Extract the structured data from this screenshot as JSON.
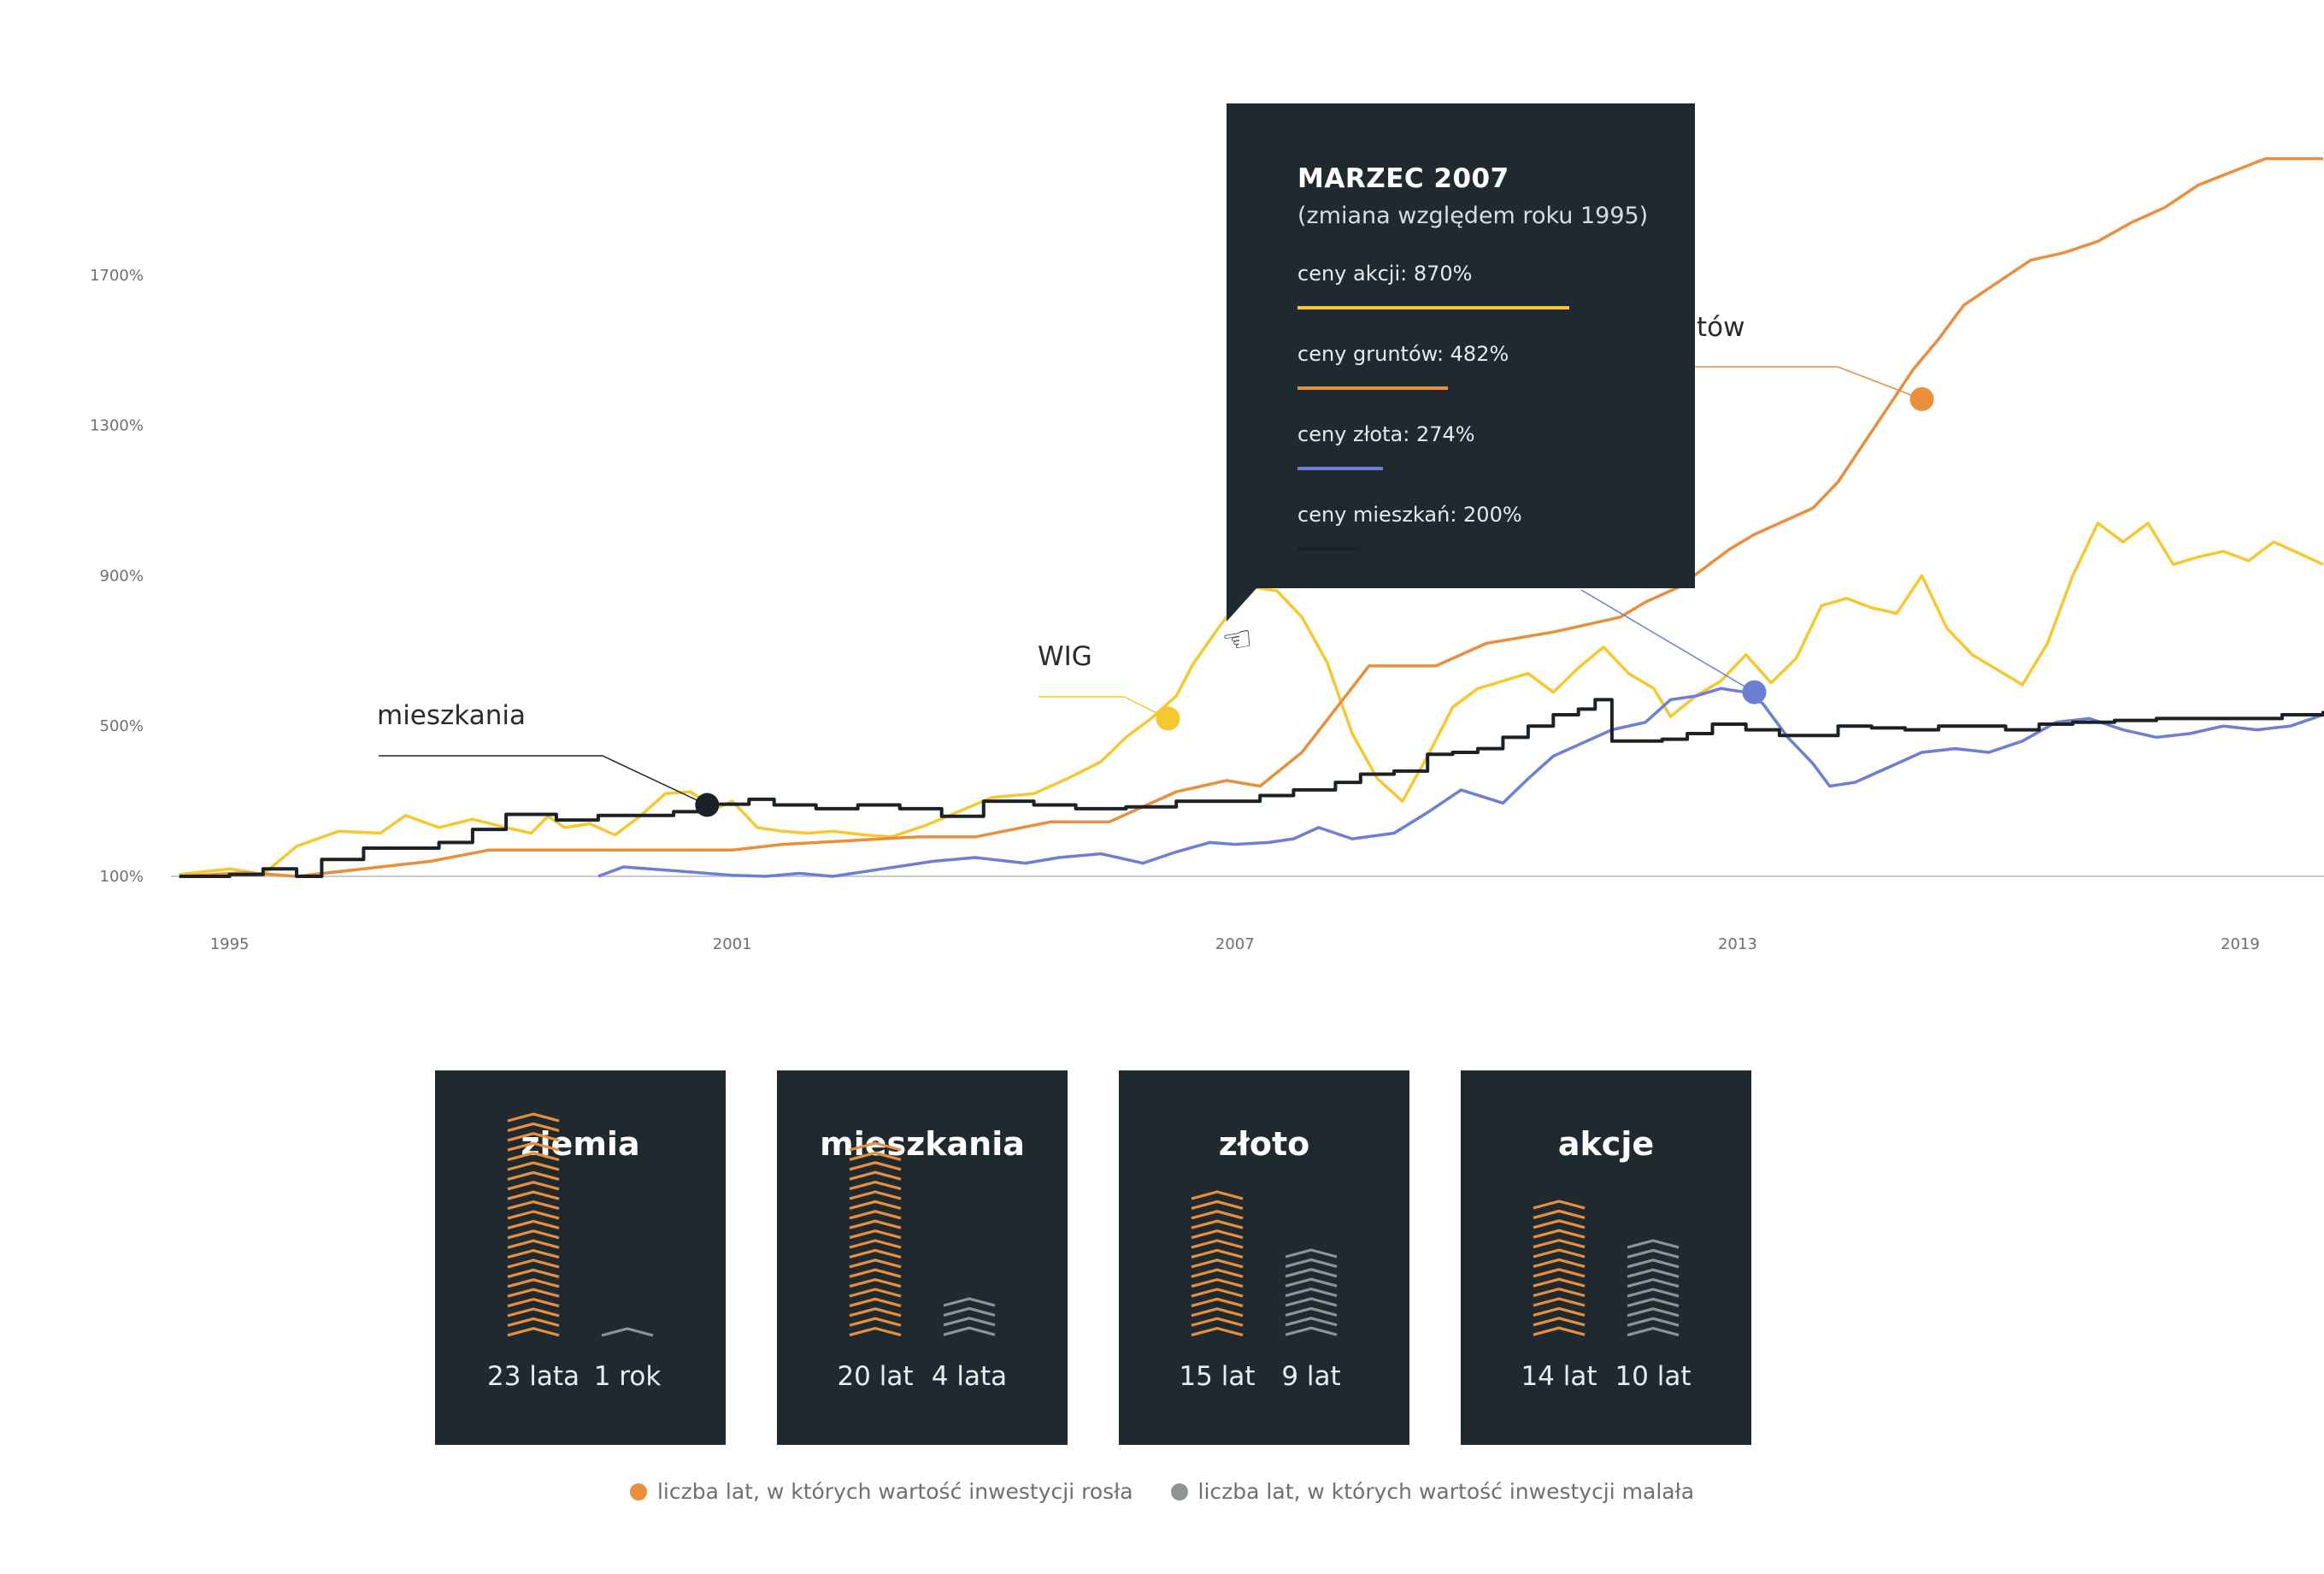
{
  "colors": {
    "akcje": "#f5c831",
    "grunty": "#e98f3c",
    "zloto": "#6c7fd4",
    "mieszkania": "#1b2227",
    "panel": "#1f2a30",
    "rise": "#e98f3c",
    "fall": "#8e9396"
  },
  "chart_data": {
    "type": "line",
    "x_range": [
      1994.3,
      2020.0
    ],
    "y_range": [
      100,
      2000
    ],
    "x_ticks": [
      "1995",
      "2001",
      "2007",
      "2013",
      "2019"
    ],
    "y_ticks": [
      "1700%",
      "1300%",
      "900%",
      "500%",
      "100%"
    ],
    "grid": false,
    "series": [
      {
        "key": "akcje",
        "name": "WIG",
        "dot": [
          2006.2,
          520
        ],
        "points": [
          [
            1994.4,
            105
          ],
          [
            1995.0,
            120
          ],
          [
            1995.4,
            105
          ],
          [
            1995.8,
            180
          ],
          [
            1996.3,
            220
          ],
          [
            1996.8,
            215
          ],
          [
            1997.1,
            262
          ],
          [
            1997.5,
            230
          ],
          [
            1997.9,
            252
          ],
          [
            1998.3,
            230
          ],
          [
            1998.6,
            215
          ],
          [
            1998.8,
            260
          ],
          [
            1999.0,
            230
          ],
          [
            1999.3,
            240
          ],
          [
            1999.6,
            210
          ],
          [
            1999.9,
            260
          ],
          [
            2000.2,
            320
          ],
          [
            2000.5,
            325
          ],
          [
            2000.8,
            280
          ],
          [
            2001.0,
            300
          ],
          [
            2001.3,
            230
          ],
          [
            2001.6,
            220
          ],
          [
            2001.9,
            215
          ],
          [
            2002.2,
            220
          ],
          [
            2002.6,
            210
          ],
          [
            2002.9,
            205
          ],
          [
            2003.3,
            235
          ],
          [
            2003.7,
            272
          ],
          [
            2004.1,
            310
          ],
          [
            2004.6,
            320
          ],
          [
            2005.0,
            360
          ],
          [
            2005.4,
            405
          ],
          [
            2005.7,
            470
          ],
          [
            2006.0,
            520
          ],
          [
            2006.3,
            580
          ],
          [
            2006.5,
            665
          ],
          [
            2006.8,
            760
          ],
          [
            2007.0,
            820
          ],
          [
            2007.2,
            870
          ],
          [
            2007.5,
            860
          ],
          [
            2007.8,
            790
          ],
          [
            2008.1,
            670
          ],
          [
            2008.4,
            480
          ],
          [
            2008.7,
            360
          ],
          [
            2009.0,
            300
          ],
          [
            2009.3,
            420
          ],
          [
            2009.6,
            550
          ],
          [
            2009.9,
            600
          ],
          [
            2010.2,
            620
          ],
          [
            2010.5,
            640
          ],
          [
            2010.8,
            590
          ],
          [
            2011.1,
            655
          ],
          [
            2011.4,
            710
          ],
          [
            2011.7,
            640
          ],
          [
            2012.0,
            600
          ],
          [
            2012.2,
            525
          ],
          [
            2012.5,
            580
          ],
          [
            2012.8,
            620
          ],
          [
            2013.1,
            690
          ],
          [
            2013.4,
            615
          ],
          [
            2013.7,
            680
          ],
          [
            2014.0,
            820
          ],
          [
            2014.3,
            840
          ],
          [
            2014.6,
            815
          ],
          [
            2014.9,
            800
          ],
          [
            2015.2,
            900
          ],
          [
            2015.5,
            760
          ],
          [
            2015.8,
            690
          ],
          [
            2016.1,
            650
          ],
          [
            2016.4,
            610
          ],
          [
            2016.7,
            720
          ],
          [
            2017.0,
            900
          ],
          [
            2017.3,
            1040
          ],
          [
            2017.6,
            990
          ],
          [
            2017.9,
            1040
          ],
          [
            2018.2,
            930
          ],
          [
            2018.5,
            950
          ],
          [
            2018.8,
            965
          ],
          [
            2019.1,
            940
          ],
          [
            2019.4,
            990
          ],
          [
            2019.7,
            960
          ],
          [
            2019.99,
            930
          ]
        ]
      },
      {
        "key": "grunty",
        "name": "",
        "dot": [
          2015.2,
          1370
        ],
        "points": [
          [
            1994.4,
            100
          ],
          [
            1995.2,
            110
          ],
          [
            1995.8,
            100
          ],
          [
            1996.6,
            120
          ],
          [
            1997.4,
            140
          ],
          [
            1998.1,
            170
          ],
          [
            2001.0,
            170
          ],
          [
            2001.6,
            185
          ],
          [
            2002.4,
            195
          ],
          [
            2003.2,
            205
          ],
          [
            2003.9,
            205
          ],
          [
            2004.8,
            245
          ],
          [
            2005.5,
            245
          ],
          [
            2006.3,
            325
          ],
          [
            2006.9,
            355
          ],
          [
            2007.3,
            340
          ],
          [
            2007.8,
            430
          ],
          [
            2008.6,
            660
          ],
          [
            2009.4,
            660
          ],
          [
            2010.0,
            720
          ],
          [
            2010.8,
            750
          ],
          [
            2011.2,
            770
          ],
          [
            2011.6,
            790
          ],
          [
            2011.9,
            830
          ],
          [
            2012.3,
            870
          ],
          [
            2012.6,
            920
          ],
          [
            2012.9,
            970
          ],
          [
            2013.2,
            1010
          ],
          [
            2013.6,
            1050
          ],
          [
            2013.9,
            1080
          ],
          [
            2014.2,
            1150
          ],
          [
            2014.5,
            1250
          ],
          [
            2014.8,
            1350
          ],
          [
            2015.1,
            1450
          ],
          [
            2015.4,
            1530
          ],
          [
            2015.7,
            1620
          ],
          [
            2016.1,
            1680
          ],
          [
            2016.5,
            1740
          ],
          [
            2016.9,
            1760
          ],
          [
            2017.3,
            1790
          ],
          [
            2017.7,
            1840
          ],
          [
            2018.1,
            1880
          ],
          [
            2018.5,
            1940
          ],
          [
            2018.9,
            1975
          ],
          [
            2019.3,
            2010
          ],
          [
            2019.99,
            2010
          ]
        ]
      },
      {
        "key": "zloto",
        "name": "",
        "dot": [
          2013.2,
          590
        ],
        "points": [
          [
            1999.4,
            100
          ],
          [
            1999.7,
            125
          ],
          [
            2000.3,
            115
          ],
          [
            2001.0,
            103
          ],
          [
            2001.4,
            100
          ],
          [
            2001.8,
            108
          ],
          [
            2002.2,
            100
          ],
          [
            2002.8,
            120
          ],
          [
            2003.4,
            140
          ],
          [
            2003.9,
            150
          ],
          [
            2004.5,
            135
          ],
          [
            2004.9,
            150
          ],
          [
            2005.4,
            160
          ],
          [
            2005.9,
            135
          ],
          [
            2006.3,
            165
          ],
          [
            2006.7,
            190
          ],
          [
            2007.0,
            185
          ],
          [
            2007.4,
            190
          ],
          [
            2007.7,
            200
          ],
          [
            2008.0,
            230
          ],
          [
            2008.4,
            200
          ],
          [
            2008.9,
            215
          ],
          [
            2009.3,
            270
          ],
          [
            2009.7,
            330
          ],
          [
            2010.2,
            295
          ],
          [
            2010.5,
            360
          ],
          [
            2010.8,
            420
          ],
          [
            2011.1,
            450
          ],
          [
            2011.5,
            490
          ],
          [
            2011.9,
            510
          ],
          [
            2012.2,
            570
          ],
          [
            2012.5,
            580
          ],
          [
            2012.8,
            600
          ],
          [
            2013.1,
            590
          ],
          [
            2013.3,
            560
          ],
          [
            2013.6,
            470
          ],
          [
            2013.9,
            400
          ],
          [
            2014.1,
            340
          ],
          [
            2014.4,
            350
          ],
          [
            2014.8,
            390
          ],
          [
            2015.2,
            430
          ],
          [
            2015.6,
            440
          ],
          [
            2016.0,
            430
          ],
          [
            2016.4,
            460
          ],
          [
            2016.8,
            510
          ],
          [
            2017.2,
            520
          ],
          [
            2017.6,
            490
          ],
          [
            2018.0,
            470
          ],
          [
            2018.4,
            480
          ],
          [
            2018.8,
            500
          ],
          [
            2019.2,
            490
          ],
          [
            2019.6,
            500
          ],
          [
            2019.99,
            530
          ]
        ]
      },
      {
        "key": "mieszkania",
        "name": "mieszkania",
        "dot": [
          2000.7,
          290
        ],
        "points": [
          [
            1994.4,
            100
          ],
          [
            1995.0,
            105
          ],
          [
            1995.4,
            120
          ],
          [
            1995.8,
            100
          ],
          [
            1996.1,
            145
          ],
          [
            1996.6,
            175
          ],
          [
            1997.5,
            190
          ],
          [
            1997.9,
            225
          ],
          [
            1998.3,
            265
          ],
          [
            1998.9,
            250
          ],
          [
            1999.4,
            262
          ],
          [
            1999.9,
            262
          ],
          [
            2000.3,
            272
          ],
          [
            2000.7,
            292
          ],
          [
            2001.2,
            305
          ],
          [
            2001.5,
            290
          ],
          [
            2002.0,
            280
          ],
          [
            2002.5,
            290
          ],
          [
            2003.0,
            280
          ],
          [
            2003.5,
            260
          ],
          [
            2004.0,
            300
          ],
          [
            2004.6,
            290
          ],
          [
            2005.1,
            280
          ],
          [
            2005.7,
            285
          ],
          [
            2006.3,
            300
          ],
          [
            2006.8,
            300
          ],
          [
            2007.3,
            315
          ],
          [
            2007.7,
            330
          ],
          [
            2008.2,
            350
          ],
          [
            2008.5,
            372
          ],
          [
            2008.9,
            380
          ],
          [
            2009.3,
            425
          ],
          [
            2009.6,
            430
          ],
          [
            2009.9,
            440
          ],
          [
            2010.2,
            470
          ],
          [
            2010.5,
            500
          ],
          [
            2010.8,
            530
          ],
          [
            2011.1,
            545
          ],
          [
            2011.3,
            570
          ],
          [
            2011.5,
            460
          ],
          [
            2011.8,
            460
          ],
          [
            2012.1,
            465
          ],
          [
            2012.4,
            480
          ],
          [
            2012.7,
            505
          ],
          [
            2013.1,
            490
          ],
          [
            2013.5,
            475
          ],
          [
            2013.9,
            475
          ],
          [
            2014.2,
            500
          ],
          [
            2014.6,
            495
          ],
          [
            2015.0,
            490
          ],
          [
            2015.4,
            500
          ],
          [
            2015.8,
            500
          ],
          [
            2016.2,
            490
          ],
          [
            2016.6,
            505
          ],
          [
            2017.0,
            510
          ],
          [
            2017.5,
            515
          ],
          [
            2018.0,
            520
          ],
          [
            2018.5,
            520
          ],
          [
            2019.0,
            520
          ],
          [
            2019.5,
            530
          ],
          [
            2019.99,
            540
          ]
        ]
      }
    ]
  },
  "labels": {
    "wig": "WIG",
    "mieszkania": "mieszkania",
    "grunty_partial": "tów"
  },
  "tooltip": {
    "title": "MARZEC 2007",
    "subtitle": "(zmiana względem roku 1995)",
    "rows": [
      {
        "label": "ceny akcji: 870%",
        "value": 870
      },
      {
        "label": "ceny gruntów: 482%",
        "value": 482
      },
      {
        "label": "ceny złota: 274%",
        "value": 274
      },
      {
        "label": "ceny mieszkań: 200%",
        "value": 200
      }
    ]
  },
  "cards": [
    {
      "title": "ziemia",
      "rise_years": 23,
      "fall_years": 1,
      "rise_label": "23 lata",
      "fall_label": "1 rok"
    },
    {
      "title": "mieszkania",
      "rise_years": 20,
      "fall_years": 4,
      "rise_label": "20 lat",
      "fall_label": "4 lata"
    },
    {
      "title": "złoto",
      "rise_years": 15,
      "fall_years": 9,
      "rise_label": "15 lat",
      "fall_label": "9 lat"
    },
    {
      "title": "akcje",
      "rise_years": 14,
      "fall_years": 10,
      "rise_label": "14 lat",
      "fall_label": "10 lat"
    }
  ],
  "legend": {
    "rise": "liczba lat, w których wartość inwestycji rosła",
    "fall": "liczba lat, w których wartość inwestycji malała"
  }
}
